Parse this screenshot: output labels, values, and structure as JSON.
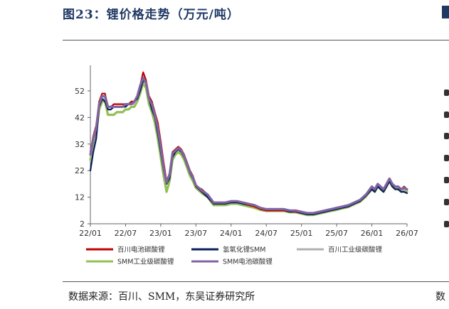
{
  "figure": {
    "title": "图23：锂价格走势（万元/吨）",
    "source": "数据来源：百川、SMM，东吴证券研究所",
    "source_tail": "数"
  },
  "chart_data": {
    "type": "line",
    "title": "图23：锂价格走势（万元/吨）",
    "xlabel": "",
    "ylabel": "",
    "x_ticks": [
      "22/01",
      "22/07",
      "23/01",
      "23/07",
      "24/01",
      "24/07",
      "25/01",
      "25/07",
      "26/01",
      "26/07"
    ],
    "y_ticks": [
      2,
      12,
      22,
      32,
      42,
      52
    ],
    "xlim": [
      0,
      54
    ],
    "ylim": [
      2,
      60
    ],
    "grid": false,
    "legend_position": "bottom",
    "x_months": [
      0,
      0.5,
      1,
      1.5,
      2,
      2.5,
      3,
      3.5,
      4,
      4.5,
      5,
      5.5,
      6,
      6.5,
      7,
      7.5,
      8,
      8.5,
      9,
      9.5,
      10,
      10.5,
      11,
      11.5,
      12,
      12.5,
      13,
      13.5,
      14,
      14.5,
      15,
      15.5,
      16,
      16.5,
      17,
      17.5,
      18,
      19,
      20,
      21,
      22,
      23,
      24,
      25,
      26,
      27,
      28,
      29,
      30,
      31,
      32,
      33,
      34,
      35,
      36,
      37,
      38,
      39,
      40,
      41,
      42,
      43,
      44,
      45,
      46,
      47,
      48,
      48.5,
      49,
      49.5,
      50,
      50.5,
      51,
      51.5,
      52,
      52.5,
      53,
      53.5,
      54
    ],
    "series": [
      {
        "name": "百川电池碳酸锂",
        "color": "#c00000",
        "values": [
          29,
          35,
          39,
          48,
          51,
          51,
          46,
          46,
          47,
          47,
          47,
          47,
          47,
          47,
          48,
          48,
          50,
          54,
          59,
          56,
          50,
          48,
          44,
          40,
          33,
          25,
          18,
          21,
          29,
          30,
          31,
          30,
          28,
          25,
          22,
          20,
          16,
          15,
          13,
          10,
          10,
          10,
          10.5,
          10.5,
          10,
          9,
          8.5,
          7.5,
          7,
          7,
          7,
          7,
          7,
          6.5,
          6.5,
          6,
          6,
          6.5,
          7,
          7.5,
          8,
          8.5,
          9,
          10,
          11,
          13,
          16,
          15,
          17,
          16,
          15,
          17,
          19,
          17,
          16,
          16,
          15,
          16,
          15
        ]
      },
      {
        "name": "氢氧化锂SMM",
        "color": "#0b1f5c",
        "values": [
          22,
          29,
          34,
          46,
          49,
          48,
          45,
          45,
          46,
          46,
          46,
          46,
          46,
          47,
          47,
          48,
          49,
          52,
          56,
          55,
          49,
          45,
          42,
          36,
          29,
          22,
          17,
          19,
          27,
          29,
          30,
          29,
          27,
          24,
          21,
          19,
          16,
          14,
          12,
          9.5,
          9.5,
          9.5,
          10,
          10,
          9.5,
          9,
          8.5,
          7.5,
          7,
          7,
          7,
          7,
          6.5,
          6.5,
          6,
          5.5,
          5.5,
          6,
          6.5,
          7,
          7.5,
          8,
          8.5,
          9.5,
          10.5,
          12.5,
          15,
          14,
          16,
          15,
          14,
          16,
          18,
          16,
          15,
          15,
          14,
          14,
          13.5
        ]
      },
      {
        "name": "百川工业级碳酸锂",
        "color": "#b0b0b0",
        "values": [
          27,
          33,
          37,
          46,
          49,
          49,
          45,
          45,
          46,
          46,
          46,
          46,
          46,
          47,
          47,
          47,
          49,
          53,
          57,
          55,
          49,
          46,
          42,
          37,
          30,
          22,
          17,
          20,
          28,
          29,
          30,
          29,
          27,
          24,
          21,
          19,
          16,
          14,
          12.5,
          9.5,
          9.5,
          9.5,
          10,
          10,
          9.5,
          9,
          8.5,
          7.5,
          7,
          7,
          7,
          7,
          6.5,
          6.5,
          6,
          5.5,
          5.5,
          6,
          6.5,
          7,
          7.5,
          8,
          8.5,
          9.5,
          10.5,
          12.5,
          15.5,
          14.5,
          16.5,
          15.5,
          14.5,
          16.5,
          18.5,
          16.5,
          15.5,
          15.5,
          14.5,
          15,
          14.5
        ]
      },
      {
        "name": "SMM工业级碳酸锂",
        "color": "#92c050",
        "values": [
          26,
          32,
          36,
          45,
          48,
          48,
          43,
          43,
          43,
          44,
          44,
          44,
          45,
          45,
          46,
          46,
          48,
          51,
          55,
          53,
          47,
          44,
          40,
          34,
          27,
          20,
          14,
          18,
          26,
          28,
          29,
          28,
          26,
          23,
          20,
          18,
          15.5,
          13.5,
          12,
          9,
          9,
          9,
          9.5,
          9.5,
          9,
          8.5,
          8,
          7.2,
          6.8,
          6.8,
          6.8,
          6.8,
          6.3,
          6.3,
          5.8,
          5.3,
          5.3,
          5.8,
          6.3,
          6.8,
          7.2,
          7.8,
          8.3,
          9.3,
          10.3,
          12.3,
          15,
          14,
          16,
          15,
          14,
          16,
          18,
          16,
          15,
          15,
          14,
          14.5,
          14
        ]
      },
      {
        "name": "SMM电池碳酸锂",
        "color": "#8064a2",
        "values": [
          28,
          34,
          38,
          47,
          50,
          50,
          46,
          46,
          46,
          46,
          46,
          46,
          47,
          47,
          47,
          48,
          50,
          54,
          57,
          55,
          49,
          47,
          43,
          38,
          31,
          23,
          17.5,
          20.5,
          28.5,
          29.5,
          30.5,
          29.5,
          27.5,
          24.5,
          21.5,
          19.5,
          16.5,
          14.5,
          13,
          10,
          10,
          10,
          10.5,
          10.5,
          10,
          9.5,
          9,
          8,
          7.5,
          7.5,
          7.5,
          7.5,
          7,
          7,
          6.5,
          6,
          6,
          6.5,
          7,
          7.5,
          8,
          8.5,
          9,
          10,
          11,
          13,
          16,
          15,
          17,
          16,
          15,
          17,
          19,
          17,
          16,
          16,
          15,
          15.5,
          15
        ]
      }
    ]
  }
}
